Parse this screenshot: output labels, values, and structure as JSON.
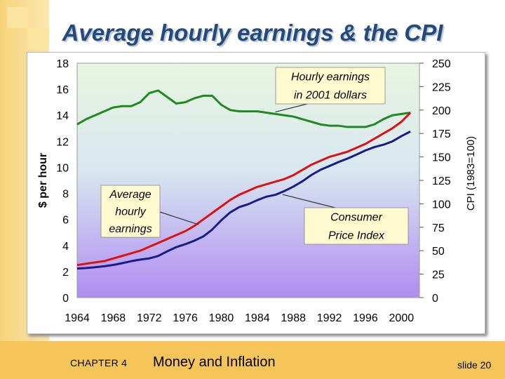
{
  "slide": {
    "title": "Average hourly earnings & the CPI",
    "chapter": "CHAPTER 4",
    "chapter_title": "Money and Inflation",
    "slide_number": "slide 20"
  },
  "colors": {
    "nominal": "#e01010",
    "real": "#1f8a1f",
    "cpi": "#1a1a8c",
    "plot_top": "#e8f5e0",
    "plot_bottom": "#b08cf0",
    "title": "#244a7c",
    "deco": "#f5c55a"
  },
  "chart_data": {
    "type": "line",
    "title": "",
    "xlabel": "",
    "ylabel": "$ per hour",
    "y2label": "CPI (1983=100)",
    "xlim": [
      1964,
      2002
    ],
    "ylim": [
      0,
      18
    ],
    "y2lim": [
      0,
      250
    ],
    "x_ticks": [
      1964,
      1968,
      1972,
      1976,
      1980,
      1984,
      1988,
      1992,
      1996,
      2000
    ],
    "y_ticks": [
      0,
      2,
      4,
      6,
      8,
      10,
      12,
      14,
      16,
      18
    ],
    "y2_ticks": [
      0,
      25,
      50,
      75,
      100,
      125,
      150,
      175,
      200,
      225,
      250
    ],
    "grid": false,
    "series": [
      {
        "key": "real",
        "axis": "left",
        "x": [
          1964,
          1965,
          1966,
          1967,
          1968,
          1969,
          1970,
          1971,
          1972,
          1973,
          1974,
          1975,
          1976,
          1977,
          1978,
          1979,
          1980,
          1981,
          1982,
          1983,
          1984,
          1985,
          1986,
          1987,
          1988,
          1989,
          1990,
          1991,
          1992,
          1993,
          1994,
          1995,
          1996,
          1997,
          1998,
          1999,
          2000,
          2001
        ],
        "values": [
          13.3,
          13.7,
          14.0,
          14.3,
          14.6,
          14.7,
          14.7,
          15.0,
          15.7,
          15.9,
          15.4,
          14.9,
          15.0,
          15.3,
          15.5,
          15.5,
          14.8,
          14.4,
          14.3,
          14.3,
          14.3,
          14.2,
          14.1,
          14.0,
          13.9,
          13.7,
          13.5,
          13.3,
          13.2,
          13.2,
          13.1,
          13.1,
          13.1,
          13.3,
          13.7,
          14.0,
          14.1,
          14.2
        ]
      },
      {
        "key": "nominal",
        "axis": "left",
        "x": [
          1964,
          1965,
          1966,
          1967,
          1968,
          1969,
          1970,
          1971,
          1972,
          1973,
          1974,
          1975,
          1976,
          1977,
          1978,
          1979,
          1980,
          1981,
          1982,
          1983,
          1984,
          1985,
          1986,
          1987,
          1988,
          1989,
          1990,
          1991,
          1992,
          1993,
          1994,
          1995,
          1996,
          1997,
          1998,
          1999,
          2000,
          2001
        ],
        "values": [
          2.5,
          2.6,
          2.7,
          2.8,
          3.0,
          3.2,
          3.4,
          3.6,
          3.9,
          4.2,
          4.5,
          4.8,
          5.1,
          5.5,
          6.0,
          6.5,
          7.0,
          7.5,
          7.9,
          8.2,
          8.5,
          8.7,
          8.9,
          9.1,
          9.4,
          9.8,
          10.2,
          10.5,
          10.8,
          11.0,
          11.2,
          11.5,
          11.8,
          12.2,
          12.6,
          13.0,
          13.5,
          14.2
        ]
      },
      {
        "key": "cpi",
        "axis": "right",
        "x": [
          1964,
          1965,
          1966,
          1967,
          1968,
          1969,
          1970,
          1971,
          1972,
          1973,
          1974,
          1975,
          1976,
          1977,
          1978,
          1979,
          1980,
          1981,
          1982,
          1983,
          1984,
          1985,
          1986,
          1987,
          1988,
          1989,
          1990,
          1991,
          1992,
          1993,
          1994,
          1995,
          1996,
          1997,
          1998,
          1999,
          2000,
          2001
        ],
        "values": [
          31,
          31.5,
          32.4,
          33.4,
          34.8,
          36.7,
          38.8,
          40.5,
          41.8,
          44.4,
          49.3,
          53.8,
          56.9,
          60.6,
          65.2,
          72.6,
          82.4,
          90.9,
          96.5,
          99.6,
          103.9,
          107.6,
          109.6,
          113.6,
          118.3,
          124.0,
          130.7,
          136.2,
          140.3,
          144.5,
          148.2,
          152.4,
          156.9,
          160.5,
          163.0,
          166.6,
          172.2,
          177.1
        ]
      }
    ],
    "annotations": [
      {
        "key": "real",
        "lines": [
          "Hourly earnings",
          "in 2001 dollars"
        ]
      },
      {
        "key": "nominal",
        "lines": [
          "Average",
          "hourly",
          "earnings"
        ]
      },
      {
        "key": "cpi",
        "lines": [
          "Consumer",
          "Price Index"
        ]
      }
    ]
  }
}
